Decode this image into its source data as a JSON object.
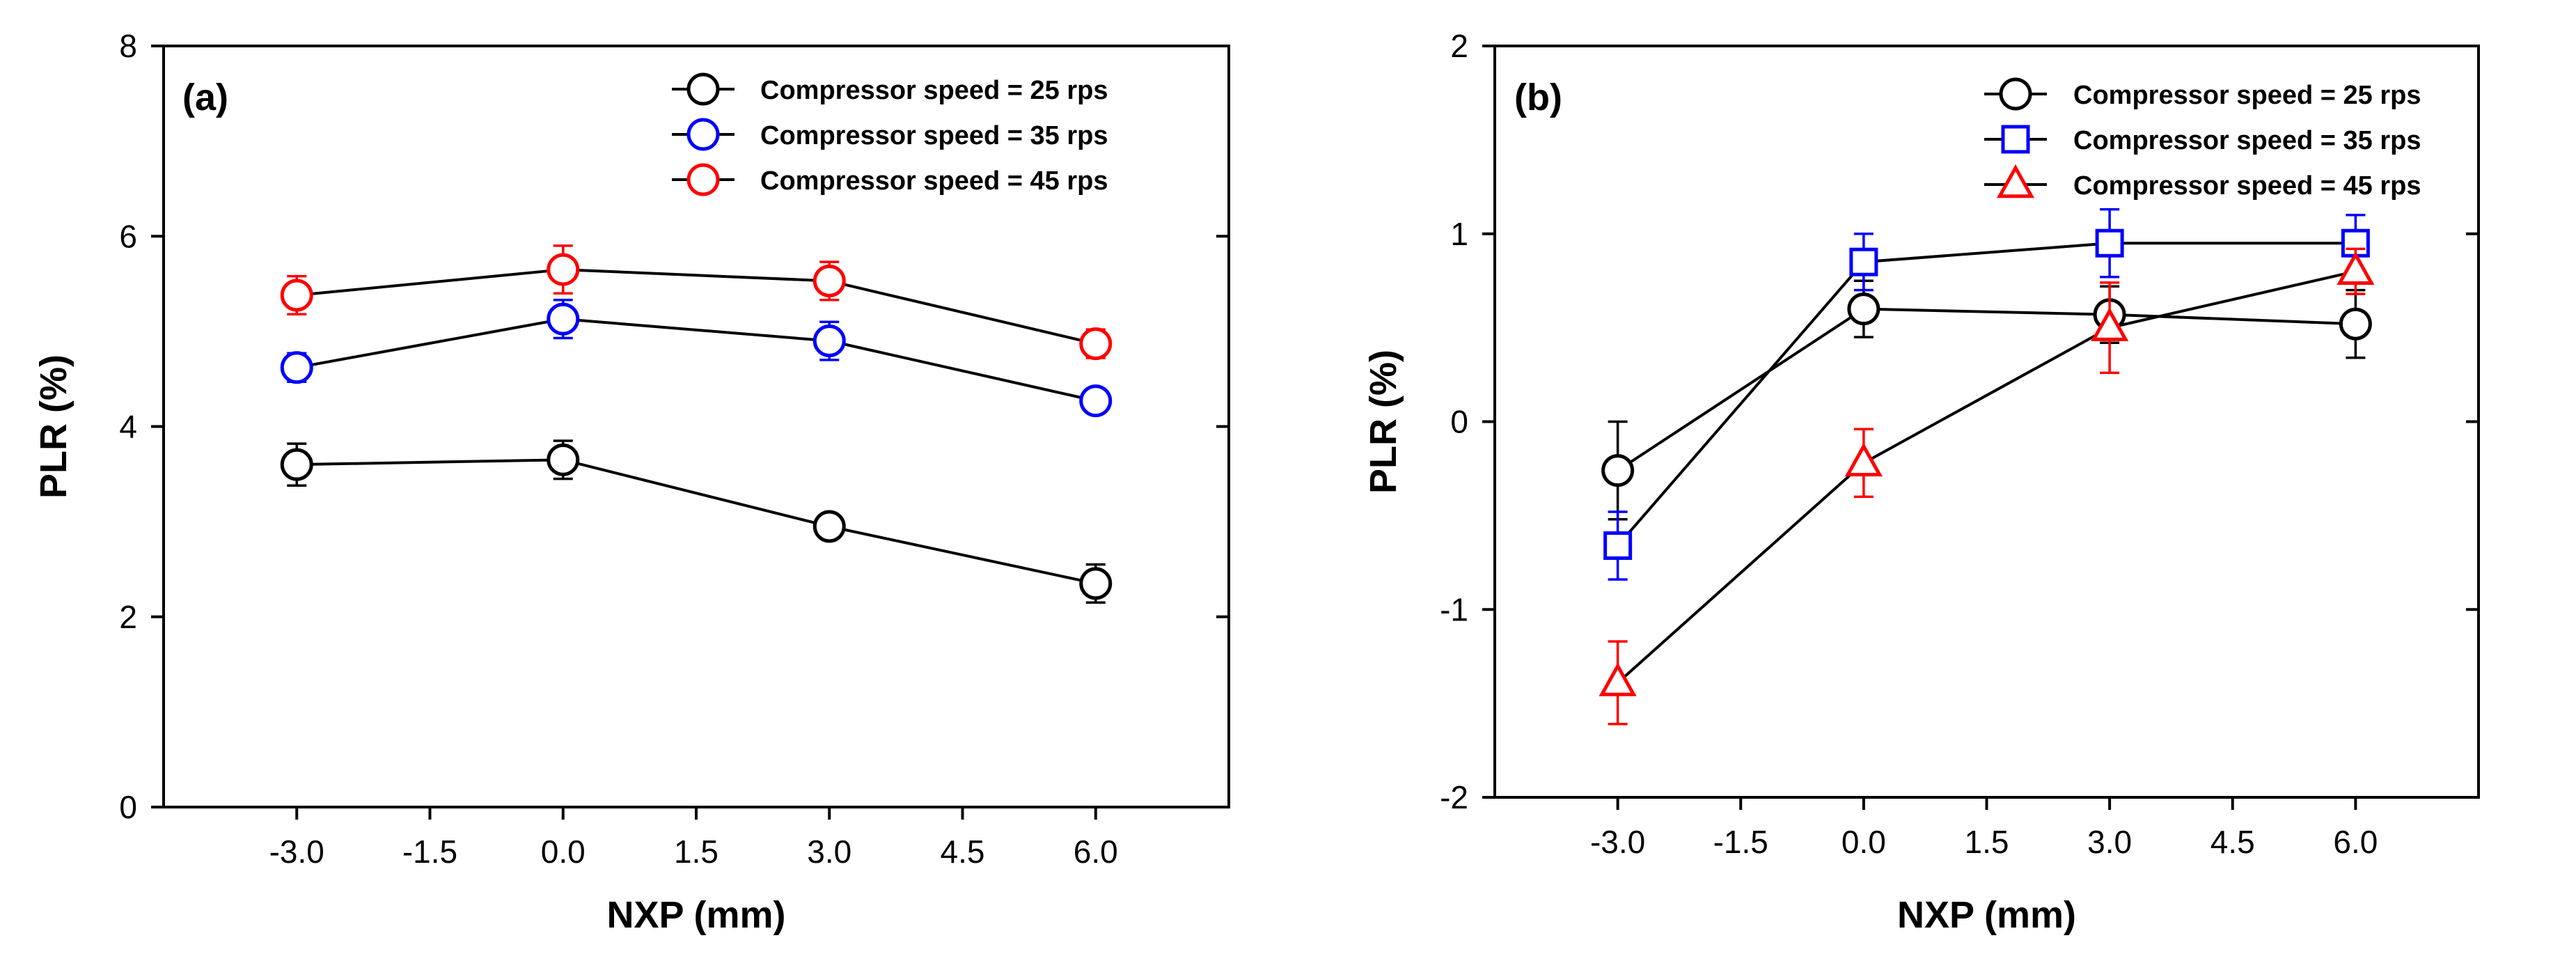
{
  "chart_data": [
    {
      "type": "line",
      "panel_label": "(a)",
      "xlabel": "NXP (mm)",
      "ylabel": "PLR (%)",
      "xlim": [
        -4.5,
        7.5
      ],
      "ylim": [
        0,
        8
      ],
      "x_ticks": [
        -3.0,
        -1.5,
        0.0,
        1.5,
        3.0,
        4.5,
        6.0
      ],
      "x_tick_labels": [
        "-3.0",
        "-1.5",
        "0.0",
        "1.5",
        "3.0",
        "4.5",
        "6.0"
      ],
      "y_ticks": [
        0,
        2,
        4,
        6,
        8
      ],
      "y_tick_labels": [
        "0",
        "2",
        "4",
        "6",
        "8"
      ],
      "legend_position": "top-right",
      "x": [
        -3.0,
        0.0,
        3.0,
        6.0
      ],
      "series": [
        {
          "name": "Compressor speed = 25 rps",
          "color": "#000000",
          "marker": "circle",
          "values": [
            3.6,
            3.65,
            2.95,
            2.35
          ],
          "errors": [
            0.22,
            0.2,
            0.1,
            0.2
          ]
        },
        {
          "name": "Compressor speed = 35 rps",
          "color": "#0000ff",
          "marker": "circle",
          "values": [
            4.62,
            5.13,
            4.9,
            4.27
          ],
          "errors": [
            0.15,
            0.2,
            0.2,
            0.1
          ]
        },
        {
          "name": "Compressor speed = 45 rps",
          "color": "#ff0000",
          "marker": "circle",
          "values": [
            5.38,
            5.65,
            5.53,
            4.87
          ],
          "errors": [
            0.2,
            0.25,
            0.2,
            0.15
          ]
        }
      ]
    },
    {
      "type": "line",
      "panel_label": "(b)",
      "xlabel": "NXP (mm)",
      "ylabel": "PLR (%)",
      "xlim": [
        -4.5,
        7.5
      ],
      "ylim": [
        -2,
        2
      ],
      "x_ticks": [
        -3.0,
        -1.5,
        0.0,
        1.5,
        3.0,
        4.5,
        6.0
      ],
      "x_tick_labels": [
        "-3.0",
        "-1.5",
        "0.0",
        "1.5",
        "3.0",
        "4.5",
        "6.0"
      ],
      "y_ticks": [
        -2,
        -1,
        0,
        1,
        2
      ],
      "y_tick_labels": [
        "-2",
        "-1",
        "0",
        "1",
        "2"
      ],
      "legend_position": "top-right",
      "x": [
        -3.0,
        0.0,
        3.0,
        6.0
      ],
      "series": [
        {
          "name": "Compressor speed = 25 rps",
          "color": "#000000",
          "marker": "circle",
          "values": [
            -0.26,
            0.6,
            0.57,
            0.52
          ],
          "errors": [
            0.26,
            0.15,
            0.15,
            0.18
          ]
        },
        {
          "name": "Compressor speed = 35 rps",
          "color": "#0000ff",
          "marker": "square",
          "values": [
            -0.66,
            0.85,
            0.95,
            0.95
          ],
          "errors": [
            0.18,
            0.15,
            0.18,
            0.15
          ]
        },
        {
          "name": "Compressor speed = 45 rps",
          "color": "#ff0000",
          "marker": "triangle",
          "values": [
            -1.39,
            -0.22,
            0.5,
            0.8
          ],
          "errors": [
            0.22,
            0.18,
            0.24,
            0.12
          ]
        }
      ]
    }
  ]
}
